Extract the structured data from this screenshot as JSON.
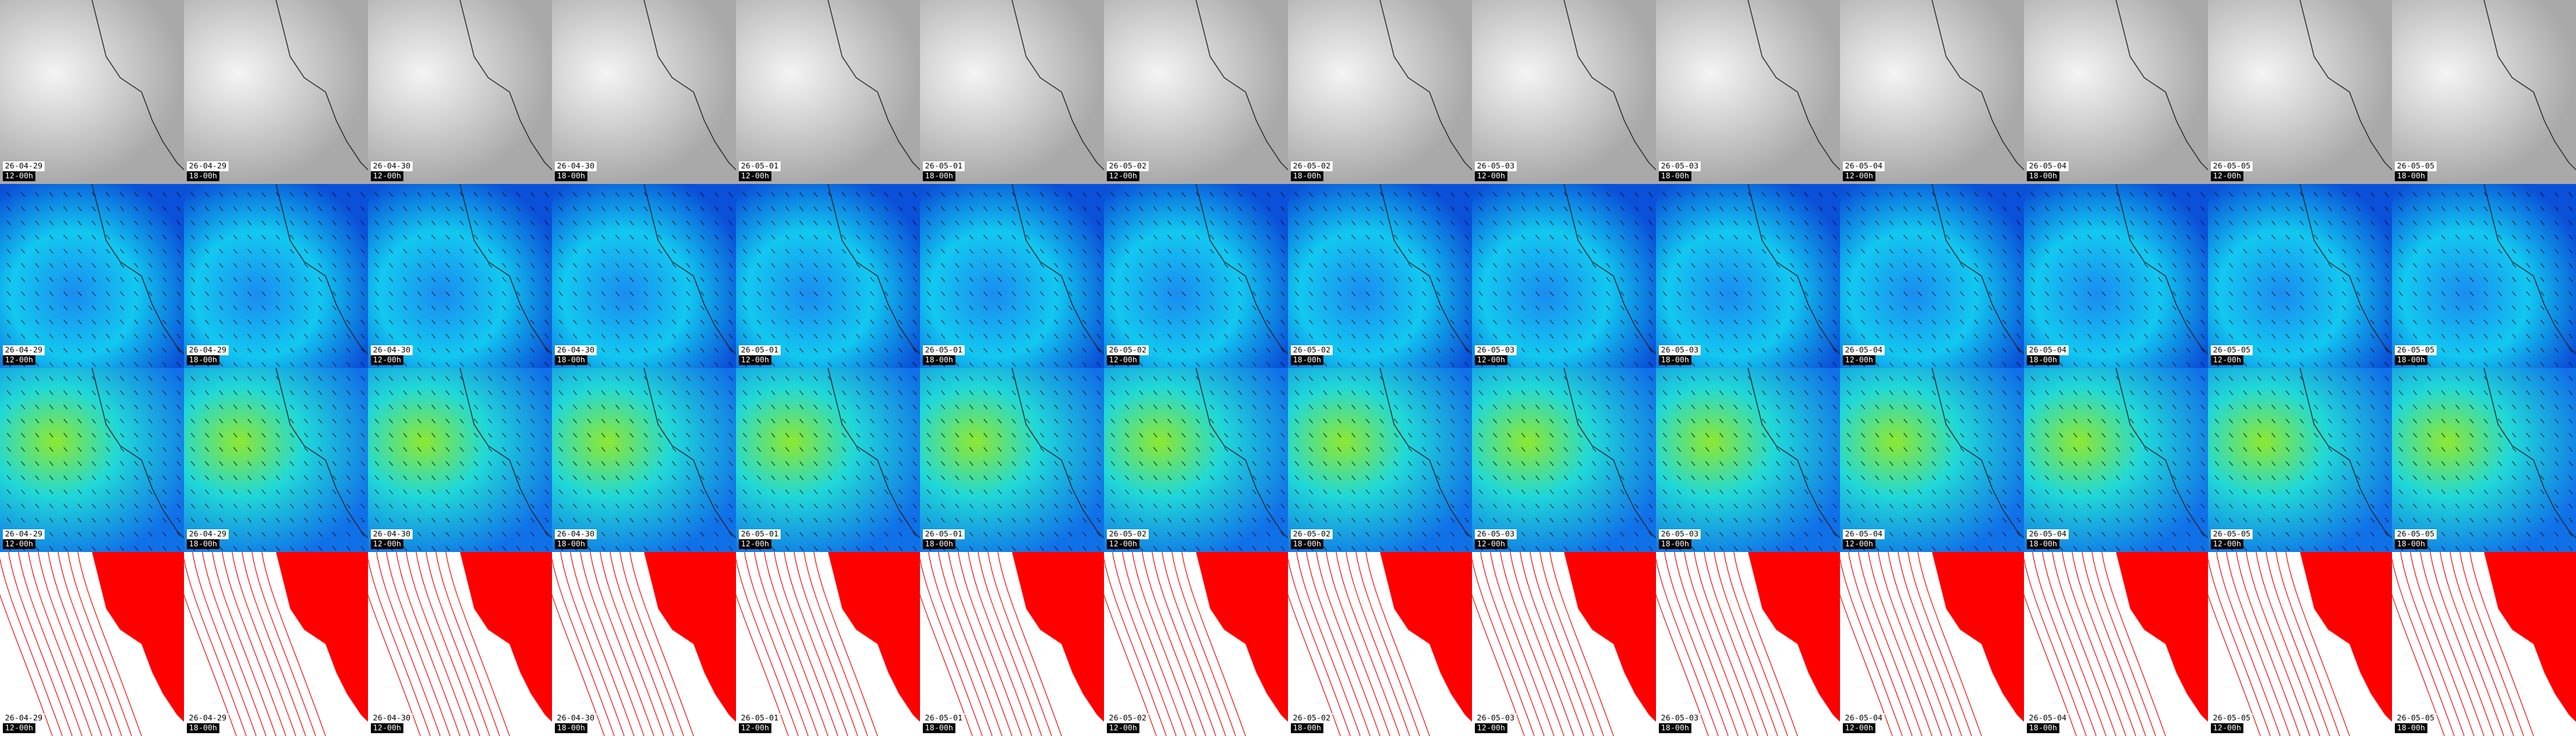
{
  "rows": [
    [
      {
        "date": "26-04-29",
        "time": "12-00h"
      },
      {
        "date": "26-04-29",
        "time": "18-00h"
      },
      {
        "date": "26-04-30",
        "time": "12-00h"
      },
      {
        "date": "26-04-30",
        "time": "18-00h"
      },
      {
        "date": "26-05-01",
        "time": "12-00h"
      },
      {
        "date": "26-05-01",
        "time": "18-00h"
      },
      {
        "date": "26-05-02",
        "time": "12-00h"
      },
      {
        "date": "26-05-02",
        "time": "18-00h"
      },
      {
        "date": "26-05-03",
        "time": "12-00h"
      },
      {
        "date": "26-05-03",
        "time": "18-00h"
      },
      {
        "date": "26-05-04",
        "time": "12-00h"
      },
      {
        "date": "26-05-04",
        "time": "18-00h"
      },
      {
        "date": "26-05-05",
        "time": "12-00h"
      },
      {
        "date": "26-05-05",
        "time": "18-00h"
      }
    ],
    [
      {
        "date": "26-04-29",
        "time": "12-00h"
      },
      {
        "date": "26-04-29",
        "time": "18-00h"
      },
      {
        "date": "26-04-30",
        "time": "12-00h"
      },
      {
        "date": "26-04-30",
        "time": "18-00h"
      },
      {
        "date": "26-05-01",
        "time": "12-00h"
      },
      {
        "date": "26-05-01",
        "time": "18-00h"
      },
      {
        "date": "26-05-02",
        "time": "12-00h"
      },
      {
        "date": "26-05-02",
        "time": "18-00h"
      },
      {
        "date": "26-05-03",
        "time": "12-00h"
      },
      {
        "date": "26-05-03",
        "time": "18-00h"
      },
      {
        "date": "26-05-04",
        "time": "12-00h"
      },
      {
        "date": "26-05-04",
        "time": "18-00h"
      },
      {
        "date": "26-05-05",
        "time": "12-00h"
      },
      {
        "date": "26-05-05",
        "time": "18-00h"
      }
    ],
    [
      {
        "date": "26-04-29",
        "time": "12-00h"
      },
      {
        "date": "26-04-29",
        "time": "18-00h"
      },
      {
        "date": "26-04-30",
        "time": "12-00h"
      },
      {
        "date": "26-04-30",
        "time": "18-00h"
      },
      {
        "date": "26-05-01",
        "time": "12-00h"
      },
      {
        "date": "26-05-01",
        "time": "18-00h"
      },
      {
        "date": "26-05-02",
        "time": "12-00h"
      },
      {
        "date": "26-05-02",
        "time": "18-00h"
      },
      {
        "date": "26-05-03",
        "time": "12-00h"
      },
      {
        "date": "26-05-03",
        "time": "18-00h"
      },
      {
        "date": "26-05-04",
        "time": "12-00h"
      },
      {
        "date": "26-05-04",
        "time": "18-00h"
      },
      {
        "date": "26-05-05",
        "time": "12-00h"
      },
      {
        "date": "26-05-05",
        "time": "18-00h"
      }
    ],
    [
      {
        "date": "26-04-29",
        "time": "12-00h"
      },
      {
        "date": "26-04-29",
        "time": "18-00h"
      },
      {
        "date": "26-04-30",
        "time": "12-00h"
      },
      {
        "date": "26-04-30",
        "time": "18-00h"
      },
      {
        "date": "26-05-01",
        "time": "12-00h"
      },
      {
        "date": "26-05-01",
        "time": "18-00h"
      },
      {
        "date": "26-05-02",
        "time": "12-00h"
      },
      {
        "date": "26-05-02",
        "time": "18-00h"
      },
      {
        "date": "26-05-03",
        "time": "12-00h"
      },
      {
        "date": "26-05-03",
        "time": "18-00h"
      },
      {
        "date": "26-05-04",
        "time": "12-00h"
      },
      {
        "date": "26-05-04",
        "time": "18-00h"
      },
      {
        "date": "26-05-05",
        "time": "12-00h"
      },
      {
        "date": "26-05-05",
        "time": "18-00h"
      }
    ]
  ]
}
